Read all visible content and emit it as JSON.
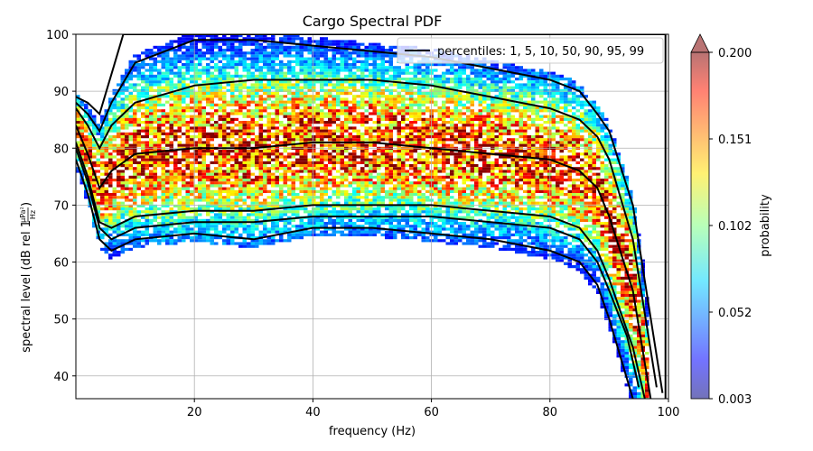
{
  "chart_data": {
    "type": "heatmap",
    "title": "Cargo Spectral PDF",
    "xlabel": "frequency (Hz)",
    "ylabel": "spectral level (dB rel 1",
    "ylabel_unit_num": "µPa²",
    "ylabel_unit_den": "Hz",
    "ylabel_close": ")",
    "xlim": [
      0,
      100
    ],
    "ylim": [
      36,
      100
    ],
    "xticks": [
      20,
      40,
      60,
      80,
      100
    ],
    "yticks": [
      40,
      50,
      60,
      70,
      80,
      90,
      100
    ],
    "grid": true,
    "legend": {
      "label": "percentiles: 1, 5, 10, 50, 90, 95, 99",
      "placement": "top-right"
    },
    "colorbar": {
      "label": "probability",
      "min": 0.003,
      "max": 0.2,
      "ticks": [
        "0.003",
        "0.052",
        "0.102",
        "0.151",
        "0.200"
      ],
      "extend": "max"
    },
    "percentile_curves": [
      {
        "p": 1,
        "points": [
          [
            0,
            78
          ],
          [
            2,
            72
          ],
          [
            4,
            64
          ],
          [
            6,
            62
          ],
          [
            10,
            64
          ],
          [
            20,
            65
          ],
          [
            30,
            64
          ],
          [
            40,
            66
          ],
          [
            50,
            66
          ],
          [
            60,
            65
          ],
          [
            70,
            64
          ],
          [
            80,
            62
          ],
          [
            85,
            60
          ],
          [
            88,
            56
          ],
          [
            90,
            50
          ],
          [
            92,
            43
          ],
          [
            94,
            36
          ]
        ]
      },
      {
        "p": 5,
        "points": [
          [
            0,
            80
          ],
          [
            2,
            74
          ],
          [
            4,
            66
          ],
          [
            6,
            64
          ],
          [
            10,
            66
          ],
          [
            20,
            67
          ],
          [
            30,
            67
          ],
          [
            40,
            68
          ],
          [
            50,
            68
          ],
          [
            60,
            68
          ],
          [
            70,
            67
          ],
          [
            80,
            66
          ],
          [
            85,
            64
          ],
          [
            88,
            60
          ],
          [
            90,
            55
          ],
          [
            93,
            47
          ],
          [
            95,
            38
          ]
        ]
      },
      {
        "p": 10,
        "points": [
          [
            0,
            81
          ],
          [
            2,
            75
          ],
          [
            4,
            67
          ],
          [
            6,
            66
          ],
          [
            10,
            68
          ],
          [
            20,
            69
          ],
          [
            30,
            69
          ],
          [
            40,
            70
          ],
          [
            50,
            70
          ],
          [
            60,
            70
          ],
          [
            70,
            69
          ],
          [
            80,
            68
          ],
          [
            85,
            66
          ],
          [
            88,
            62
          ],
          [
            90,
            57
          ],
          [
            94,
            45
          ],
          [
            96,
            36
          ]
        ]
      },
      {
        "p": 50,
        "points": [
          [
            0,
            84
          ],
          [
            2,
            79
          ],
          [
            4,
            73
          ],
          [
            6,
            76
          ],
          [
            10,
            79
          ],
          [
            20,
            80
          ],
          [
            30,
            80
          ],
          [
            40,
            81
          ],
          [
            50,
            81
          ],
          [
            60,
            80
          ],
          [
            70,
            79
          ],
          [
            80,
            78
          ],
          [
            85,
            76
          ],
          [
            88,
            73
          ],
          [
            90,
            68
          ],
          [
            94,
            55
          ],
          [
            97,
            36
          ]
        ]
      },
      {
        "p": 90,
        "points": [
          [
            0,
            87
          ],
          [
            2,
            84
          ],
          [
            4,
            80
          ],
          [
            6,
            84
          ],
          [
            10,
            88
          ],
          [
            20,
            91
          ],
          [
            30,
            92
          ],
          [
            40,
            92
          ],
          [
            50,
            92
          ],
          [
            60,
            91
          ],
          [
            70,
            89
          ],
          [
            80,
            87
          ],
          [
            85,
            85
          ],
          [
            88,
            82
          ],
          [
            90,
            78
          ],
          [
            94,
            64
          ],
          [
            98,
            38
          ]
        ]
      },
      {
        "p": 95,
        "points": [
          [
            0,
            88
          ],
          [
            2,
            86
          ],
          [
            4,
            83
          ],
          [
            6,
            88
          ],
          [
            10,
            95
          ],
          [
            20,
            99
          ],
          [
            30,
            99
          ],
          [
            40,
            98
          ],
          [
            50,
            97
          ],
          [
            60,
            96
          ],
          [
            70,
            94
          ],
          [
            80,
            92
          ],
          [
            85,
            90
          ],
          [
            88,
            86
          ],
          [
            90,
            83
          ],
          [
            94,
            70
          ],
          [
            99,
            37
          ]
        ]
      },
      {
        "p": 99,
        "points": [
          [
            0,
            89
          ],
          [
            2,
            88
          ],
          [
            4,
            86
          ],
          [
            6,
            93
          ],
          [
            8,
            100
          ],
          [
            99.5,
            100
          ],
          [
            99.5,
            36
          ]
        ]
      }
    ]
  }
}
